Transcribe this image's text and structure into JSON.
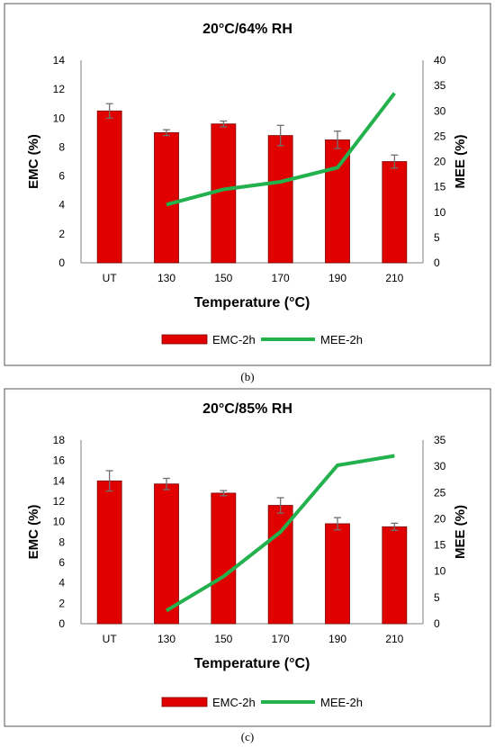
{
  "chart_data": [
    {
      "type": "bar",
      "title": "20°C/64% RH",
      "xlabel": "Temperature (°C)",
      "ylabel": "EMC (%)",
      "y2label": "MEE (%)",
      "categories": [
        "UT",
        "130",
        "150",
        "170",
        "190",
        "210"
      ],
      "ylim": [
        0,
        14
      ],
      "yticks": [
        0,
        2,
        4,
        6,
        8,
        10,
        12,
        14
      ],
      "y2lim": [
        0,
        40
      ],
      "y2ticks": [
        0,
        5,
        10,
        15,
        20,
        25,
        30,
        35,
        40
      ],
      "legend": "bottom",
      "series": [
        {
          "name": "EMC-2h",
          "type": "bar",
          "axis": "left",
          "color": "#e00000",
          "values": [
            10.5,
            9.0,
            9.6,
            8.8,
            8.5,
            7.0
          ],
          "error": [
            0.5,
            0.2,
            0.2,
            0.7,
            0.6,
            0.45
          ]
        },
        {
          "name": "MEE-2h",
          "type": "line",
          "axis": "right",
          "color": "#22b14c",
          "values": [
            null,
            11.5,
            14.5,
            16.0,
            18.8,
            33.5
          ]
        }
      ],
      "caption": "(b)"
    },
    {
      "type": "bar",
      "title": "20°C/85% RH",
      "xlabel": "Temperature (°C)",
      "ylabel": "EMC (%)",
      "y2label": "MEE (%)",
      "categories": [
        "UT",
        "130",
        "150",
        "170",
        "190",
        "210"
      ],
      "ylim": [
        0,
        18
      ],
      "yticks": [
        0,
        2,
        4,
        6,
        8,
        10,
        12,
        14,
        16,
        18
      ],
      "y2lim": [
        0,
        35
      ],
      "y2ticks": [
        0,
        5,
        10,
        15,
        20,
        25,
        30,
        35
      ],
      "legend": "bottom",
      "series": [
        {
          "name": "EMC-2h",
          "type": "bar",
          "axis": "left",
          "color": "#e00000",
          "values": [
            14.0,
            13.7,
            12.8,
            11.6,
            9.8,
            9.5
          ],
          "error": [
            1.0,
            0.55,
            0.25,
            0.75,
            0.6,
            0.35
          ]
        },
        {
          "name": "MEE-2h",
          "type": "line",
          "axis": "right",
          "color": "#22b14c",
          "values": [
            null,
            2.5,
            9.0,
            17.5,
            30.2,
            32.0
          ]
        }
      ],
      "caption": "(c)"
    }
  ]
}
